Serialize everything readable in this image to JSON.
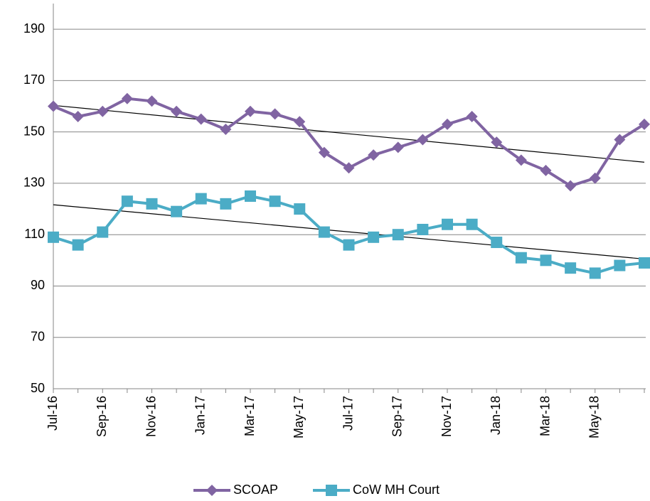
{
  "chart_data": {
    "type": "line",
    "categories": [
      "Jul-16",
      null,
      "Sep-16",
      null,
      "Nov-16",
      null,
      "Jan-17",
      null,
      "Mar-17",
      null,
      "May-17",
      null,
      "Jul-17",
      null,
      "Sep-17",
      null,
      "Nov-17",
      null,
      "Jan-18",
      null,
      "Mar-18",
      null,
      "May-18",
      null,
      null
    ],
    "series": [
      {
        "name": "SCOAP",
        "color": "#8064a2",
        "marker": "diamond",
        "values": [
          160,
          156,
          158,
          163,
          162,
          158,
          155,
          151,
          158,
          157,
          154,
          142,
          136,
          141,
          144,
          147,
          153,
          156,
          146,
          139,
          135,
          129,
          132,
          147,
          153
        ]
      },
      {
        "name": "CoW MH Court",
        "color": "#4bacc6",
        "marker": "square",
        "values": [
          109,
          106,
          111,
          123,
          122,
          119,
          124,
          122,
          125,
          123,
          120,
          111,
          106,
          109,
          110,
          112,
          114,
          114,
          107,
          101,
          100,
          97,
          95,
          98,
          99
        ]
      }
    ],
    "ylim": [
      50,
      200
    ],
    "yticks": [
      50,
      70,
      90,
      110,
      130,
      150,
      170,
      190
    ],
    "grid": true,
    "trendline": true,
    "legend": "bottom"
  }
}
